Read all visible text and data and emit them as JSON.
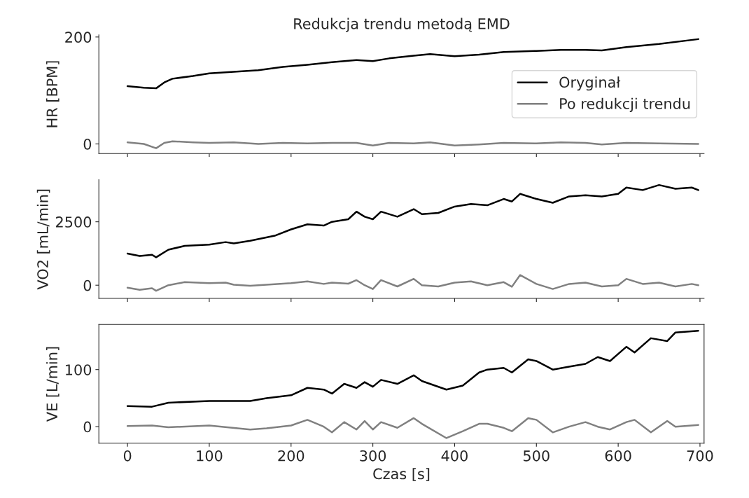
{
  "chart_data": [
    {
      "type": "line",
      "title": "Redukcja trendu metodą EMD",
      "ylabel": "HR [BPM]",
      "xlim": [
        -35,
        705
      ],
      "xticks": [
        0,
        100,
        200,
        300,
        400,
        500,
        600,
        700
      ],
      "ylim": [
        -18,
        204
      ],
      "yticks": [
        0,
        200
      ],
      "tick_labels": "y",
      "legend": "right",
      "grid": false,
      "series": [
        {
          "name": "Oryginał",
          "color": "#000000",
          "x": [
            0,
            20,
            35,
            45,
            55,
            80,
            100,
            130,
            160,
            190,
            220,
            250,
            280,
            300,
            320,
            350,
            370,
            400,
            430,
            460,
            500,
            530,
            560,
            580,
            610,
            650,
            698
          ],
          "values": [
            108,
            105,
            104,
            115,
            122,
            127,
            132,
            135,
            138,
            144,
            148,
            153,
            157,
            155,
            160,
            165,
            168,
            164,
            167,
            172,
            174,
            176,
            176,
            175,
            181,
            187,
            196
          ]
        },
        {
          "name": "Po redukcji trendu",
          "color": "#808080",
          "x": [
            0,
            20,
            35,
            45,
            55,
            80,
            100,
            130,
            160,
            190,
            220,
            250,
            280,
            300,
            320,
            350,
            370,
            400,
            430,
            460,
            500,
            530,
            560,
            580,
            610,
            650,
            698
          ],
          "values": [
            3,
            0,
            -8,
            2,
            5,
            3,
            2,
            3,
            0,
            2,
            1,
            2,
            2,
            -3,
            2,
            1,
            3,
            -3,
            -1,
            2,
            1,
            3,
            2,
            -1,
            2,
            1,
            0
          ]
        }
      ]
    },
    {
      "type": "line",
      "ylabel": "VO2 [mL/min]",
      "xlim": [
        -35,
        705
      ],
      "xticks": [
        0,
        100,
        200,
        300,
        400,
        500,
        600,
        700
      ],
      "ylim": [
        -520,
        4160
      ],
      "yticks": [
        0,
        2500
      ],
      "tick_labels": "y",
      "grid": false,
      "series": [
        {
          "color": "#000000",
          "x": [
            0,
            15,
            30,
            35,
            50,
            70,
            100,
            120,
            130,
            150,
            180,
            200,
            220,
            240,
            250,
            270,
            280,
            290,
            300,
            310,
            330,
            350,
            360,
            380,
            400,
            420,
            440,
            460,
            470,
            480,
            500,
            520,
            540,
            560,
            580,
            600,
            610,
            630,
            650,
            670,
            690,
            698
          ],
          "values": [
            1250,
            1150,
            1200,
            1100,
            1400,
            1550,
            1600,
            1700,
            1650,
            1750,
            1950,
            2200,
            2400,
            2350,
            2500,
            2600,
            2900,
            2700,
            2600,
            2900,
            2700,
            3000,
            2800,
            2850,
            3100,
            3200,
            3150,
            3400,
            3300,
            3600,
            3400,
            3250,
            3500,
            3550,
            3500,
            3600,
            3850,
            3750,
            3950,
            3800,
            3850,
            3750
          ]
        },
        {
          "color": "#808080",
          "x": [
            0,
            15,
            30,
            35,
            50,
            70,
            100,
            120,
            130,
            150,
            180,
            200,
            220,
            240,
            250,
            270,
            280,
            290,
            300,
            310,
            330,
            350,
            360,
            380,
            400,
            420,
            440,
            460,
            470,
            480,
            500,
            520,
            540,
            560,
            580,
            600,
            610,
            630,
            650,
            670,
            690,
            698
          ],
          "values": [
            -100,
            -180,
            -120,
            -220,
            0,
            120,
            80,
            100,
            20,
            -20,
            40,
            80,
            150,
            50,
            100,
            60,
            200,
            0,
            -150,
            200,
            -50,
            250,
            0,
            -50,
            100,
            150,
            0,
            120,
            -60,
            400,
            50,
            -150,
            50,
            100,
            -50,
            0,
            250,
            50,
            100,
            -50,
            50,
            0
          ]
        }
      ]
    },
    {
      "type": "line",
      "ylabel": "VE [L/min]",
      "xlabel": "Czas [s]",
      "xlim": [
        -35,
        705
      ],
      "xticks": [
        0,
        100,
        200,
        300,
        400,
        500,
        600,
        700
      ],
      "ylim": [
        -29,
        179
      ],
      "yticks": [
        0,
        100
      ],
      "grid": false,
      "series": [
        {
          "color": "#000000",
          "x": [
            0,
            30,
            50,
            100,
            150,
            170,
            200,
            220,
            240,
            250,
            265,
            280,
            290,
            300,
            310,
            330,
            350,
            360,
            390,
            410,
            430,
            440,
            460,
            470,
            490,
            500,
            520,
            540,
            560,
            575,
            590,
            610,
            620,
            640,
            660,
            670,
            698
          ],
          "values": [
            36,
            35,
            42,
            45,
            45,
            50,
            55,
            68,
            65,
            58,
            75,
            68,
            78,
            70,
            82,
            75,
            90,
            80,
            65,
            72,
            95,
            100,
            103,
            95,
            118,
            115,
            100,
            105,
            110,
            122,
            115,
            140,
            130,
            155,
            150,
            165,
            168
          ]
        },
        {
          "color": "#808080",
          "x": [
            0,
            30,
            50,
            100,
            150,
            170,
            200,
            220,
            240,
            250,
            265,
            280,
            290,
            300,
            310,
            330,
            350,
            360,
            390,
            410,
            430,
            440,
            460,
            470,
            490,
            500,
            520,
            540,
            560,
            575,
            590,
            610,
            620,
            640,
            660,
            670,
            698
          ],
          "values": [
            1,
            2,
            -1,
            2,
            -5,
            -3,
            2,
            12,
            0,
            -10,
            8,
            -5,
            10,
            -5,
            8,
            -2,
            15,
            5,
            -20,
            -8,
            5,
            5,
            -2,
            -8,
            15,
            12,
            -10,
            0,
            8,
            0,
            -5,
            8,
            12,
            -10,
            10,
            0,
            3
          ]
        }
      ]
    }
  ]
}
